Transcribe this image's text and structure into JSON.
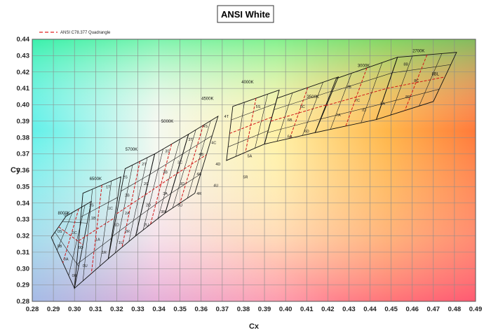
{
  "chart_data": {
    "type": "scatter",
    "title": "ANSI White",
    "xlabel": "Cx",
    "ylabel": "Cy",
    "xlim": [
      0.28,
      0.49
    ],
    "ylim": [
      0.28,
      0.44
    ],
    "xticks": [
      "0.28",
      "0.29",
      "0.30",
      "0.31",
      "0.32",
      "0.33",
      "0.34",
      "0.35",
      "0.36",
      "0.37",
      "0.38",
      "0.39",
      "0.40",
      "0.41",
      "0.42",
      "0.43",
      "0.44",
      "0.45",
      "0.46",
      "0.47",
      "0.48",
      "0.49"
    ],
    "yticks": [
      "0.28",
      "0.29",
      "0.30",
      "0.31",
      "0.32",
      "0.33",
      "0.34",
      "0.35",
      "0.36",
      "0.37",
      "0.38",
      "0.39",
      "0.40",
      "0.41",
      "0.42",
      "0.43",
      "0.44"
    ],
    "grid": true,
    "legend": {
      "position": "top-left",
      "entries": [
        {
          "name": "ANSI C78.377 Quadrangle",
          "color": "#e02020",
          "style": "dashed"
        }
      ]
    },
    "background": "CIE chromaticity color gradient",
    "planckian_cct_labels": [
      {
        "text": "8000K",
        "x": 0.295,
        "y": 0.333
      },
      {
        "text": "6500K",
        "x": 0.31,
        "y": 0.354
      },
      {
        "text": "5700K",
        "x": 0.327,
        "y": 0.372
      },
      {
        "text": "5000K",
        "x": 0.344,
        "y": 0.389
      },
      {
        "text": "4500K",
        "x": 0.363,
        "y": 0.403
      },
      {
        "text": "4000K",
        "x": 0.382,
        "y": 0.413
      },
      {
        "text": "3500K",
        "x": 0.413,
        "y": 0.404
      },
      {
        "text": "3000K",
        "x": 0.437,
        "y": 0.423
      },
      {
        "text": "2700K",
        "x": 0.463,
        "y": 0.432
      },
      {
        "text": "8BL",
        "x": 0.471,
        "y": 0.418
      }
    ],
    "quadrangles": [
      {
        "name": "8000K",
        "corners": [
          [
            0.296,
            0.332
          ],
          [
            0.308,
            0.341
          ],
          [
            0.3,
            0.288
          ],
          [
            0.289,
            0.319
          ]
        ]
      },
      {
        "name": "6500K",
        "corners": [
          [
            0.304,
            0.346
          ],
          [
            0.322,
            0.356
          ],
          [
            0.316,
            0.306
          ],
          [
            0.3,
            0.288
          ]
        ]
      },
      {
        "name": "5700K",
        "corners": [
          [
            0.324,
            0.361
          ],
          [
            0.338,
            0.37
          ],
          [
            0.329,
            0.32
          ],
          [
            0.316,
            0.306
          ]
        ]
      },
      {
        "name": "5000K",
        "corners": [
          [
            0.338,
            0.37
          ],
          [
            0.354,
            0.382
          ],
          [
            0.343,
            0.334
          ],
          [
            0.329,
            0.32
          ]
        ]
      },
      {
        "name": "4500K",
        "corners": [
          [
            0.354,
            0.382
          ],
          [
            0.368,
            0.393
          ],
          [
            0.357,
            0.346
          ],
          [
            0.343,
            0.334
          ]
        ]
      },
      {
        "name": "4000K",
        "corners": [
          [
            0.375,
            0.399
          ],
          [
            0.397,
            0.409
          ],
          [
            0.39,
            0.376
          ],
          [
            0.372,
            0.366
          ]
        ]
      },
      {
        "name": "3500K",
        "corners": [
          [
            0.396,
            0.404
          ],
          [
            0.425,
            0.417
          ],
          [
            0.414,
            0.383
          ],
          [
            0.39,
            0.376
          ]
        ]
      },
      {
        "name": "3000K",
        "corners": [
          [
            0.424,
            0.416
          ],
          [
            0.453,
            0.429
          ],
          [
            0.443,
            0.391
          ],
          [
            0.414,
            0.383
          ]
        ]
      },
      {
        "name": "2700K",
        "corners": [
          [
            0.453,
            0.429
          ],
          [
            0.481,
            0.432
          ],
          [
            0.47,
            0.402
          ],
          [
            0.443,
            0.391
          ]
        ]
      }
    ],
    "bin_labels": [
      {
        "text": "0T",
        "x": 0.296,
        "y": 0.332
      },
      {
        "text": "0S",
        "x": 0.293,
        "y": 0.322
      },
      {
        "text": "0C",
        "x": 0.3,
        "y": 0.321
      },
      {
        "text": "0B",
        "x": 0.293,
        "y": 0.313
      },
      {
        "text": "0D",
        "x": 0.303,
        "y": 0.312
      },
      {
        "text": "0A",
        "x": 0.296,
        "y": 0.305
      },
      {
        "text": "0U",
        "x": 0.305,
        "y": 0.301
      },
      {
        "text": "0R",
        "x": 0.3,
        "y": 0.295
      },
      {
        "text": "1T",
        "x": 0.316,
        "y": 0.349
      },
      {
        "text": "1S",
        "x": 0.308,
        "y": 0.338
      },
      {
        "text": "1C",
        "x": 0.317,
        "y": 0.336
      },
      {
        "text": "1B",
        "x": 0.309,
        "y": 0.33
      },
      {
        "text": "1D",
        "x": 0.32,
        "y": 0.326
      },
      {
        "text": "1A",
        "x": 0.311,
        "y": 0.317
      },
      {
        "text": "1U",
        "x": 0.322,
        "y": 0.315
      },
      {
        "text": "1R",
        "x": 0.314,
        "y": 0.309
      },
      {
        "text": "2T",
        "x": 0.333,
        "y": 0.363
      },
      {
        "text": "2S",
        "x": 0.324,
        "y": 0.355
      },
      {
        "text": "2C",
        "x": 0.334,
        "y": 0.351
      },
      {
        "text": "2B",
        "x": 0.325,
        "y": 0.344
      },
      {
        "text": "2D",
        "x": 0.335,
        "y": 0.338
      },
      {
        "text": "2A",
        "x": 0.325,
        "y": 0.333
      },
      {
        "text": "2U",
        "x": 0.334,
        "y": 0.326
      },
      {
        "text": "2R",
        "x": 0.325,
        "y": 0.322
      },
      {
        "text": "3S",
        "x": 0.344,
        "y": 0.371
      },
      {
        "text": "3T",
        "x": 0.355,
        "y": 0.378
      },
      {
        "text": "3C",
        "x": 0.35,
        "y": 0.364
      },
      {
        "text": "3B",
        "x": 0.343,
        "y": 0.358
      },
      {
        "text": "3D",
        "x": 0.351,
        "y": 0.351
      },
      {
        "text": "3A",
        "x": 0.343,
        "y": 0.345
      },
      {
        "text": "3U",
        "x": 0.35,
        "y": 0.338
      },
      {
        "text": "3R",
        "x": 0.342,
        "y": 0.334
      },
      {
        "text": "4T",
        "x": 0.372,
        "y": 0.392
      },
      {
        "text": "4S",
        "x": 0.362,
        "y": 0.386
      },
      {
        "text": "4C",
        "x": 0.366,
        "y": 0.376
      },
      {
        "text": "4B",
        "x": 0.36,
        "y": 0.369
      },
      {
        "text": "4D",
        "x": 0.368,
        "y": 0.363
      },
      {
        "text": "4A",
        "x": 0.359,
        "y": 0.357
      },
      {
        "text": "4U",
        "x": 0.367,
        "y": 0.35
      },
      {
        "text": "4R",
        "x": 0.359,
        "y": 0.345
      },
      {
        "text": "5S",
        "x": 0.387,
        "y": 0.398
      },
      {
        "text": "5R",
        "x": 0.381,
        "y": 0.355
      },
      {
        "text": "5A",
        "x": 0.383,
        "y": 0.368
      },
      {
        "text": "6B",
        "x": 0.402,
        "y": 0.39
      },
      {
        "text": "6A",
        "x": 0.402,
        "y": 0.38
      },
      {
        "text": "6C",
        "x": 0.408,
        "y": 0.398
      },
      {
        "text": "6D",
        "x": 0.41,
        "y": 0.383
      },
      {
        "text": "7A",
        "x": 0.425,
        "y": 0.393
      },
      {
        "text": "7B",
        "x": 0.43,
        "y": 0.41
      },
      {
        "text": "7C",
        "x": 0.434,
        "y": 0.402
      },
      {
        "text": "7D",
        "x": 0.437,
        "y": 0.396
      },
      {
        "text": "8A",
        "x": 0.446,
        "y": 0.4
      },
      {
        "text": "8B",
        "x": 0.457,
        "y": 0.424
      },
      {
        "text": "8C",
        "x": 0.462,
        "y": 0.414
      },
      {
        "text": "8D",
        "x": 0.458,
        "y": 0.404
      }
    ]
  }
}
